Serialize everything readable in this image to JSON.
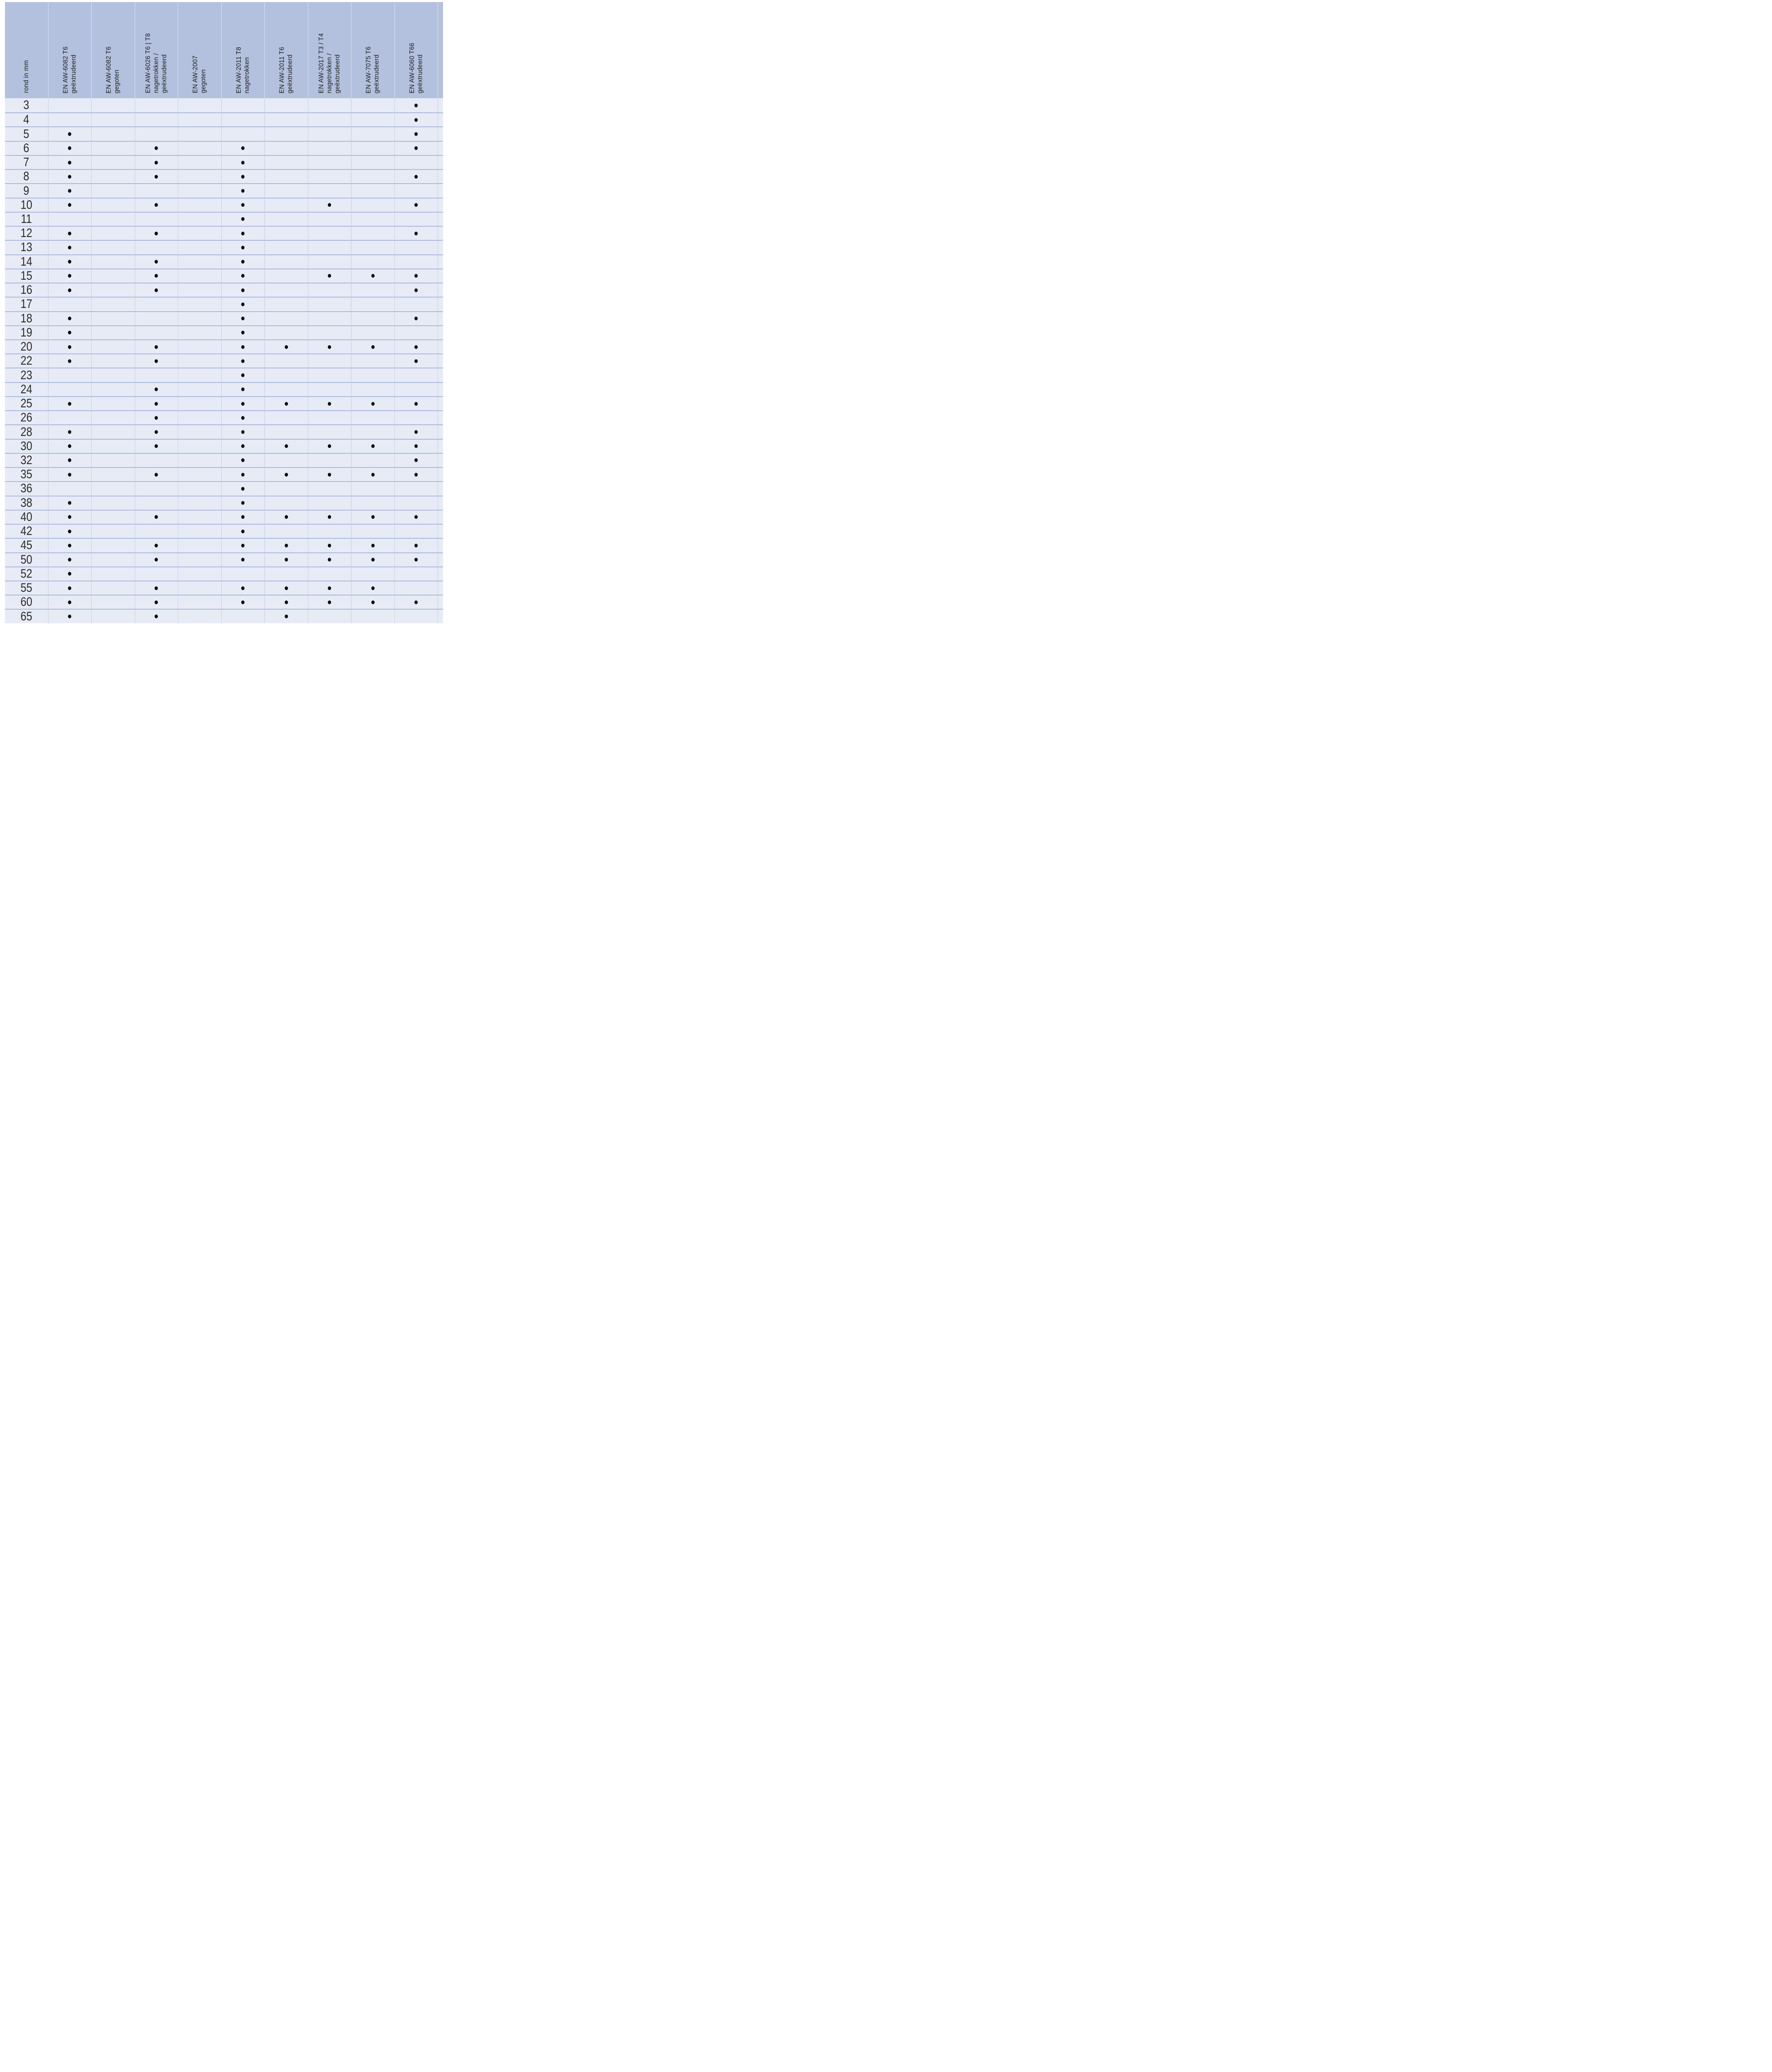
{
  "table": {
    "row_header": "rond in mm",
    "columns": [
      "EN AW-6082 T6\ngeëxtrudeerd",
      "EN AW-6082 T6\ngegoten",
      "EN AW-6026 T6 | T8\nnagetrokken /\ngeëxtrudeerd",
      "EN AW-2007\ngegoten",
      "EN AW-2011 T8\nnagetrokken",
      "EN AW-2011 T6\ngeëxtrudeerd",
      "EN AW-2017 T3 / T4\nnagetrokken /\ngeëxtrudeerd",
      "EN AW-7075 T6\ngeëxtrudeerd",
      "EN AW-6060 T66\ngeëxtrudeerd"
    ],
    "rows": [
      {
        "size": "3",
        "dots": [
          0,
          0,
          0,
          0,
          0,
          0,
          0,
          0,
          1
        ]
      },
      {
        "size": "4",
        "dots": [
          0,
          0,
          0,
          0,
          0,
          0,
          0,
          0,
          1
        ]
      },
      {
        "size": "5",
        "dots": [
          1,
          0,
          0,
          0,
          0,
          0,
          0,
          0,
          1
        ]
      },
      {
        "size": "6",
        "dots": [
          1,
          0,
          1,
          0,
          1,
          0,
          0,
          0,
          1
        ]
      },
      {
        "size": "7",
        "dots": [
          1,
          0,
          1,
          0,
          1,
          0,
          0,
          0,
          0
        ]
      },
      {
        "size": "8",
        "dots": [
          1,
          0,
          1,
          0,
          1,
          0,
          0,
          0,
          1
        ]
      },
      {
        "size": "9",
        "dots": [
          1,
          0,
          0,
          0,
          1,
          0,
          0,
          0,
          0
        ]
      },
      {
        "size": "10",
        "dots": [
          1,
          0,
          1,
          0,
          1,
          0,
          1,
          0,
          1
        ]
      },
      {
        "size": "11",
        "dots": [
          0,
          0,
          0,
          0,
          1,
          0,
          0,
          0,
          0
        ]
      },
      {
        "size": "12",
        "dots": [
          1,
          0,
          1,
          0,
          1,
          0,
          0,
          0,
          1
        ]
      },
      {
        "size": "13",
        "dots": [
          1,
          0,
          0,
          0,
          1,
          0,
          0,
          0,
          0
        ]
      },
      {
        "size": "14",
        "dots": [
          1,
          0,
          1,
          0,
          1,
          0,
          0,
          0,
          0
        ]
      },
      {
        "size": "15",
        "dots": [
          1,
          0,
          1,
          0,
          1,
          0,
          1,
          1,
          1
        ]
      },
      {
        "size": "16",
        "dots": [
          1,
          0,
          1,
          0,
          1,
          0,
          0,
          0,
          1
        ]
      },
      {
        "size": "17",
        "dots": [
          0,
          0,
          0,
          0,
          1,
          0,
          0,
          0,
          0
        ]
      },
      {
        "size": "18",
        "dots": [
          1,
          0,
          0,
          0,
          1,
          0,
          0,
          0,
          1
        ]
      },
      {
        "size": "19",
        "dots": [
          1,
          0,
          0,
          0,
          1,
          0,
          0,
          0,
          0
        ]
      },
      {
        "size": "20",
        "dots": [
          1,
          0,
          1,
          0,
          1,
          1,
          1,
          1,
          1
        ]
      },
      {
        "size": "22",
        "dots": [
          1,
          0,
          1,
          0,
          1,
          0,
          0,
          0,
          1
        ]
      },
      {
        "size": "23",
        "dots": [
          0,
          0,
          0,
          0,
          1,
          0,
          0,
          0,
          0
        ]
      },
      {
        "size": "24",
        "dots": [
          0,
          0,
          1,
          0,
          1,
          0,
          0,
          0,
          0
        ]
      },
      {
        "size": "25",
        "dots": [
          1,
          0,
          1,
          0,
          1,
          1,
          1,
          1,
          1
        ]
      },
      {
        "size": "26",
        "dots": [
          0,
          0,
          1,
          0,
          1,
          0,
          0,
          0,
          0
        ]
      },
      {
        "size": "28",
        "dots": [
          1,
          0,
          1,
          0,
          1,
          0,
          0,
          0,
          1
        ]
      },
      {
        "size": "30",
        "dots": [
          1,
          0,
          1,
          0,
          1,
          1,
          1,
          1,
          1
        ]
      },
      {
        "size": "32",
        "dots": [
          1,
          0,
          0,
          0,
          1,
          0,
          0,
          0,
          1
        ]
      },
      {
        "size": "35",
        "dots": [
          1,
          0,
          1,
          0,
          1,
          1,
          1,
          1,
          1
        ]
      },
      {
        "size": "36",
        "dots": [
          0,
          0,
          0,
          0,
          1,
          0,
          0,
          0,
          0
        ]
      },
      {
        "size": "38",
        "dots": [
          1,
          0,
          0,
          0,
          1,
          0,
          0,
          0,
          0
        ]
      },
      {
        "size": "40",
        "dots": [
          1,
          0,
          1,
          0,
          1,
          1,
          1,
          1,
          1
        ]
      },
      {
        "size": "42",
        "dots": [
          1,
          0,
          0,
          0,
          1,
          0,
          0,
          0,
          0
        ]
      },
      {
        "size": "45",
        "dots": [
          1,
          0,
          1,
          0,
          1,
          1,
          1,
          1,
          1
        ]
      },
      {
        "size": "50",
        "dots": [
          1,
          0,
          1,
          0,
          1,
          1,
          1,
          1,
          1
        ]
      },
      {
        "size": "52",
        "dots": [
          1,
          0,
          0,
          0,
          0,
          0,
          0,
          0,
          0
        ]
      },
      {
        "size": "55",
        "dots": [
          1,
          0,
          1,
          0,
          1,
          1,
          1,
          1,
          0
        ]
      },
      {
        "size": "60",
        "dots": [
          1,
          0,
          1,
          0,
          1,
          1,
          1,
          1,
          1
        ]
      },
      {
        "size": "65",
        "dots": [
          1,
          0,
          1,
          0,
          0,
          1,
          0,
          0,
          0
        ]
      }
    ],
    "marker_glyph": "●"
  },
  "colors": {
    "header_bg": "#b3c0de",
    "body_bg": "#e7ebf6",
    "grid_vertical_header": "#dfe6f3",
    "grid_vertical_body": "#c2cce7",
    "grid_horizontal": "#aab8dc",
    "dot": "#0b0b0b",
    "text": "#1c1c1c",
    "page_bg": "#ffffff"
  },
  "chart_data": {
    "type": "table",
    "title": "",
    "row_header": "rond in mm",
    "columns": [
      "rond in mm",
      "EN AW-6082 T6 geëxtrudeerd",
      "EN AW-6082 T6 gegoten",
      "EN AW-6026 T6 | T8 nagetrokken / geëxtrudeerd",
      "EN AW-2007 gegoten",
      "EN AW-2011 T8 nagetrokken",
      "EN AW-2011 T6 geëxtrudeerd",
      "EN AW-2017 T3 / T4 nagetrokken / geëxtrudeerd",
      "EN AW-7075 T6 geëxtrudeerd",
      "EN AW-6060 T66 geëxtrudeerd"
    ],
    "marker": "filled dot = value present in cell",
    "rows": [
      [
        3,
        0,
        0,
        0,
        0,
        0,
        0,
        0,
        0,
        1
      ],
      [
        4,
        0,
        0,
        0,
        0,
        0,
        0,
        0,
        0,
        1
      ],
      [
        5,
        1,
        0,
        0,
        0,
        0,
        0,
        0,
        0,
        1
      ],
      [
        6,
        1,
        0,
        1,
        0,
        1,
        0,
        0,
        0,
        1
      ],
      [
        7,
        1,
        0,
        1,
        0,
        1,
        0,
        0,
        0,
        0
      ],
      [
        8,
        1,
        0,
        1,
        0,
        1,
        0,
        0,
        0,
        1
      ],
      [
        9,
        1,
        0,
        0,
        0,
        1,
        0,
        0,
        0,
        0
      ],
      [
        10,
        1,
        0,
        1,
        0,
        1,
        0,
        1,
        0,
        1
      ],
      [
        11,
        0,
        0,
        0,
        0,
        1,
        0,
        0,
        0,
        0
      ],
      [
        12,
        1,
        0,
        1,
        0,
        1,
        0,
        0,
        0,
        1
      ],
      [
        13,
        1,
        0,
        0,
        0,
        1,
        0,
        0,
        0,
        0
      ],
      [
        14,
        1,
        0,
        1,
        0,
        1,
        0,
        0,
        0,
        0
      ],
      [
        15,
        1,
        0,
        1,
        0,
        1,
        0,
        1,
        1,
        1
      ],
      [
        16,
        1,
        0,
        1,
        0,
        1,
        0,
        0,
        0,
        1
      ],
      [
        17,
        0,
        0,
        0,
        0,
        1,
        0,
        0,
        0,
        0
      ],
      [
        18,
        1,
        0,
        0,
        0,
        1,
        0,
        0,
        0,
        1
      ],
      [
        19,
        1,
        0,
        0,
        0,
        1,
        0,
        0,
        0,
        0
      ],
      [
        20,
        1,
        0,
        1,
        0,
        1,
        1,
        1,
        1,
        1
      ],
      [
        22,
        1,
        0,
        1,
        0,
        1,
        0,
        0,
        0,
        1
      ],
      [
        23,
        0,
        0,
        0,
        0,
        1,
        0,
        0,
        0,
        0
      ],
      [
        24,
        0,
        0,
        1,
        0,
        1,
        0,
        0,
        0,
        0
      ],
      [
        25,
        1,
        0,
        1,
        0,
        1,
        1,
        1,
        1,
        1
      ],
      [
        26,
        0,
        0,
        1,
        0,
        1,
        0,
        0,
        0,
        0
      ],
      [
        28,
        1,
        0,
        1,
        0,
        1,
        0,
        0,
        0,
        1
      ],
      [
        30,
        1,
        0,
        1,
        0,
        1,
        1,
        1,
        1,
        1
      ],
      [
        32,
        1,
        0,
        0,
        0,
        1,
        0,
        0,
        0,
        1
      ],
      [
        35,
        1,
        0,
        1,
        0,
        1,
        1,
        1,
        1,
        1
      ],
      [
        36,
        0,
        0,
        0,
        0,
        1,
        0,
        0,
        0,
        0
      ],
      [
        38,
        1,
        0,
        0,
        0,
        1,
        0,
        0,
        0,
        0
      ],
      [
        40,
        1,
        0,
        1,
        0,
        1,
        1,
        1,
        1,
        1
      ],
      [
        42,
        1,
        0,
        0,
        0,
        1,
        0,
        0,
        0,
        0
      ],
      [
        45,
        1,
        0,
        1,
        0,
        1,
        1,
        1,
        1,
        1
      ],
      [
        50,
        1,
        0,
        1,
        0,
        1,
        1,
        1,
        1,
        1
      ],
      [
        52,
        1,
        0,
        0,
        0,
        0,
        0,
        0,
        0,
        0
      ],
      [
        55,
        1,
        0,
        1,
        0,
        1,
        1,
        1,
        1,
        0
      ],
      [
        60,
        1,
        0,
        1,
        0,
        1,
        1,
        1,
        1,
        1
      ],
      [
        65,
        1,
        0,
        1,
        0,
        0,
        1,
        0,
        0,
        0
      ]
    ],
    "grid": true,
    "legend_position": "none"
  }
}
